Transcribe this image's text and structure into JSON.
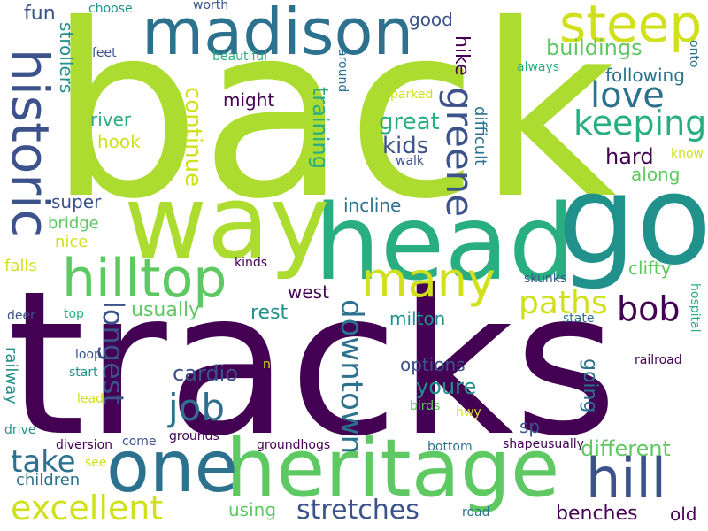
{
  "palette": {
    "purple": "#440154",
    "indigo": "#3b528b",
    "blue": "#2c728e",
    "teal": "#21918c",
    "green": "#28ae80",
    "lightgreen": "#5ec962",
    "lime": "#addc30",
    "yellow": "#fde725"
  },
  "words": [
    {
      "text": "back",
      "color": "#addc30"
    },
    {
      "text": "tracks",
      "color": "#440154"
    },
    {
      "text": "head",
      "color": "#28ae80"
    },
    {
      "text": "go",
      "color": "#21918c"
    },
    {
      "text": "way",
      "color": "#addc30"
    },
    {
      "text": "madison",
      "color": "#2c728e"
    },
    {
      "text": "heritage",
      "color": "#5ec962"
    },
    {
      "text": "one",
      "color": "#2c728e"
    },
    {
      "text": "hilltop",
      "color": "#5ec962"
    },
    {
      "text": "historic",
      "color": "#3b528b"
    },
    {
      "text": "steep",
      "color": "#d0e11c"
    },
    {
      "text": "hill",
      "color": "#3b528b"
    },
    {
      "text": "many",
      "color": "#d0e11c"
    },
    {
      "text": "love",
      "color": "#2c728e"
    },
    {
      "text": "keeping",
      "color": "#28ae80"
    },
    {
      "text": "greene",
      "color": "#3b528b"
    },
    {
      "text": "excellent",
      "color": "#d0e11c"
    },
    {
      "text": "stretches",
      "color": "#3b528b"
    },
    {
      "text": "bob",
      "color": "#440154"
    },
    {
      "text": "paths",
      "color": "#d0e11c"
    },
    {
      "text": "job",
      "color": "#2c728e"
    },
    {
      "text": "take",
      "color": "#2c728e"
    },
    {
      "text": "longest",
      "color": "#3b528b"
    },
    {
      "text": "downtown",
      "color": "#2c728e"
    },
    {
      "text": "different",
      "color": "#5ec962"
    },
    {
      "text": "buildings",
      "color": "#5ec962"
    },
    {
      "text": "great",
      "color": "#28ae80"
    },
    {
      "text": "kids",
      "color": "#3b528b"
    },
    {
      "text": "youre",
      "color": "#21918c"
    },
    {
      "text": "cardio",
      "color": "#3b528b"
    },
    {
      "text": "benches",
      "color": "#440154"
    },
    {
      "text": "continue",
      "color": "#d0e11c"
    },
    {
      "text": "training",
      "color": "#28ae80"
    },
    {
      "text": "hard",
      "color": "#440154"
    },
    {
      "text": "following",
      "color": "#2c728e"
    },
    {
      "text": "fun",
      "color": "#3b528b"
    },
    {
      "text": "good",
      "color": "#3b528b"
    },
    {
      "text": "river",
      "color": "#28ae80"
    },
    {
      "text": "hook",
      "color": "#d0e11c"
    },
    {
      "text": "might",
      "color": "#440154"
    },
    {
      "text": "super",
      "color": "#3b528b"
    },
    {
      "text": "bridge",
      "color": "#5ec962"
    },
    {
      "text": "nice",
      "color": "#d0e11c"
    },
    {
      "text": "incline",
      "color": "#2c728e"
    },
    {
      "text": "along",
      "color": "#5ec962"
    },
    {
      "text": "rest",
      "color": "#21918c"
    },
    {
      "text": "usually",
      "color": "#5ec962"
    },
    {
      "text": "west",
      "color": "#440154"
    },
    {
      "text": "milton",
      "color": "#21918c"
    },
    {
      "text": "options",
      "color": "#3b528b"
    },
    {
      "text": "going",
      "color": "#2c728e"
    },
    {
      "text": "using",
      "color": "#5ec962"
    },
    {
      "text": "children",
      "color": "#2c728e"
    },
    {
      "text": "old",
      "color": "#440154"
    },
    {
      "text": "clifty",
      "color": "#5ec962"
    },
    {
      "text": "hike",
      "color": "#440154"
    },
    {
      "text": "difficult",
      "color": "#2c728e"
    },
    {
      "text": "strollers",
      "color": "#21918c"
    },
    {
      "text": "falls",
      "color": "#d0e11c"
    },
    {
      "text": "sp",
      "color": "#3b528b"
    },
    {
      "text": "railway",
      "color": "#21918c"
    },
    {
      "text": "choose",
      "color": "#21918c"
    },
    {
      "text": "worth",
      "color": "#3b528b"
    },
    {
      "text": "feet",
      "color": "#3b528b"
    },
    {
      "text": "beautiful",
      "color": "#28ae80"
    },
    {
      "text": "around",
      "color": "#2c728e"
    },
    {
      "text": "parked",
      "color": "#d0e11c"
    },
    {
      "text": "always",
      "color": "#28ae80"
    },
    {
      "text": "onto",
      "color": "#2c728e"
    },
    {
      "text": "know",
      "color": "#d0e11c"
    },
    {
      "text": "walk",
      "color": "#3b528b"
    },
    {
      "text": "kinds",
      "color": "#440154"
    },
    {
      "text": "skunks",
      "color": "#3b528b"
    },
    {
      "text": "deer",
      "color": "#3b528b"
    },
    {
      "text": "top",
      "color": "#28ae80"
    },
    {
      "text": "state",
      "color": "#2c728e"
    },
    {
      "text": "hospital",
      "color": "#28ae80"
    },
    {
      "text": "loop",
      "color": "#3b528b"
    },
    {
      "text": "n",
      "color": "#d0e11c"
    },
    {
      "text": "railroad",
      "color": "#440154"
    },
    {
      "text": "start",
      "color": "#21918c"
    },
    {
      "text": "lead",
      "color": "#d0e11c"
    },
    {
      "text": "birds",
      "color": "#5ec962"
    },
    {
      "text": "hwy",
      "color": "#d0e11c"
    },
    {
      "text": "drive",
      "color": "#21918c"
    },
    {
      "text": "diversion",
      "color": "#440154"
    },
    {
      "text": "come",
      "color": "#3b528b"
    },
    {
      "text": "grounds",
      "color": "#440154"
    },
    {
      "text": "groundhogs",
      "color": "#440154"
    },
    {
      "text": "shapeusually",
      "color": "#440154"
    },
    {
      "text": "bottom",
      "color": "#2c728e"
    },
    {
      "text": "see",
      "color": "#d0e11c"
    },
    {
      "text": "road",
      "color": "#2c728e"
    }
  ]
}
